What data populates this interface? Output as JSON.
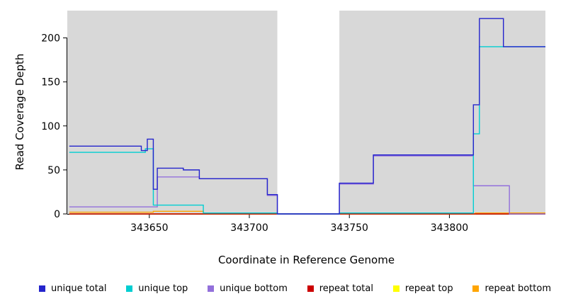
{
  "chart_data": {
    "type": "line",
    "title": "",
    "xlabel": "Coordinate in Reference Genome",
    "ylabel": "Read Coverage Depth",
    "xlim": [
      343609,
      343848
    ],
    "ylim": [
      0,
      231
    ],
    "x_ticks": [
      343650,
      343700,
      343750,
      343800
    ],
    "y_ticks": [
      0,
      50,
      100,
      150,
      200
    ],
    "grid": false,
    "legend_position": "bottom",
    "plot_background": "#ffffff",
    "shaded_regions": [
      {
        "x0": 343609,
        "x1": 343714,
        "color": "#d8d8d8"
      },
      {
        "x0": 343745,
        "x1": 343848,
        "color": "#d8d8d8"
      }
    ],
    "gap_region": {
      "x0": 343714,
      "x1": 343745,
      "color": "#ffffff"
    },
    "series": [
      {
        "name": "unique total",
        "color": "#2424cc",
        "points": [
          [
            343610,
            77
          ],
          [
            343646,
            77
          ],
          [
            343646,
            72
          ],
          [
            343649,
            72
          ],
          [
            343649,
            85
          ],
          [
            343652,
            85
          ],
          [
            343652,
            28
          ],
          [
            343654,
            28
          ],
          [
            343654,
            52
          ],
          [
            343667,
            52
          ],
          [
            343667,
            50
          ],
          [
            343675,
            50
          ],
          [
            343675,
            40
          ],
          [
            343709,
            40
          ],
          [
            343709,
            22
          ],
          [
            343714,
            22
          ],
          [
            343714,
            0
          ],
          [
            343745,
            0
          ],
          [
            343745,
            35
          ],
          [
            343762,
            35
          ],
          [
            343762,
            67
          ],
          [
            343812,
            67
          ],
          [
            343812,
            124
          ],
          [
            343815,
            124
          ],
          [
            343815,
            222
          ],
          [
            343827,
            222
          ],
          [
            343827,
            190
          ],
          [
            343848,
            190
          ]
        ]
      },
      {
        "name": "unique top",
        "color": "#00ced1",
        "points": [
          [
            343610,
            70
          ],
          [
            343648,
            70
          ],
          [
            343648,
            74
          ],
          [
            343652,
            74
          ],
          [
            343652,
            10
          ],
          [
            343677,
            10
          ],
          [
            343677,
            1
          ],
          [
            343714,
            1
          ],
          [
            343714,
            0
          ],
          [
            343745,
            0
          ],
          [
            343745,
            1
          ],
          [
            343812,
            1
          ],
          [
            343812,
            91
          ],
          [
            343815,
            91
          ],
          [
            343815,
            190
          ],
          [
            343848,
            190
          ]
        ]
      },
      {
        "name": "unique bottom",
        "color": "#9370db",
        "points": [
          [
            343610,
            8
          ],
          [
            343654,
            8
          ],
          [
            343654,
            42
          ],
          [
            343675,
            42
          ],
          [
            343675,
            40
          ],
          [
            343709,
            40
          ],
          [
            343709,
            21
          ],
          [
            343714,
            21
          ],
          [
            343714,
            0
          ],
          [
            343745,
            0
          ],
          [
            343745,
            34
          ],
          [
            343762,
            34
          ],
          [
            343762,
            66
          ],
          [
            343812,
            66
          ],
          [
            343812,
            32
          ],
          [
            343830,
            32
          ],
          [
            343830,
            0
          ],
          [
            343848,
            0
          ]
        ]
      },
      {
        "name": "repeat total",
        "color": "#cc0000",
        "points": [
          [
            343610,
            0
          ],
          [
            343848,
            0
          ]
        ]
      },
      {
        "name": "repeat top",
        "color": "#ffff00",
        "points": [
          [
            343610,
            0
          ],
          [
            343848,
            0
          ]
        ]
      },
      {
        "name": "repeat bottom",
        "color": "#ffa500",
        "points": [
          [
            343610,
            2
          ],
          [
            343652,
            2
          ],
          [
            343652,
            3
          ],
          [
            343677,
            3
          ],
          [
            343677,
            0
          ],
          [
            343813,
            0
          ],
          [
            343813,
            1
          ],
          [
            343848,
            1
          ]
        ]
      }
    ]
  }
}
